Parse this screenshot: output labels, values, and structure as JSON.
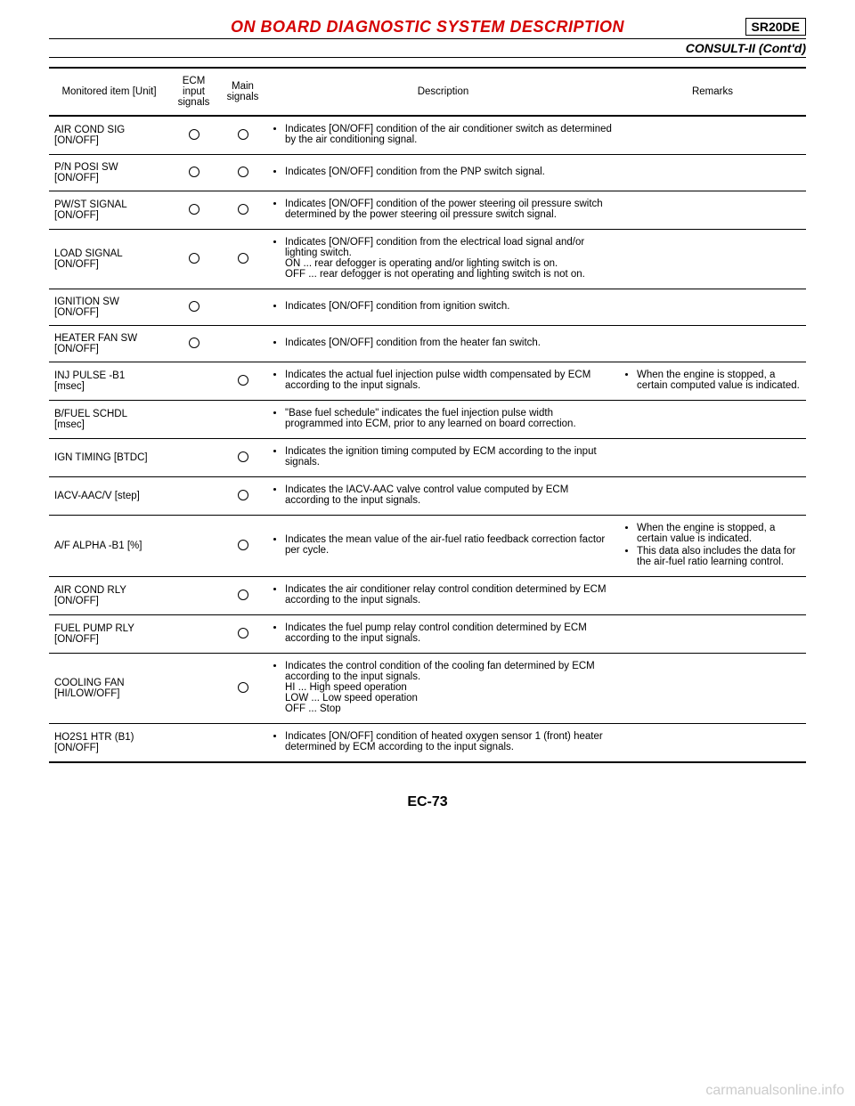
{
  "header": {
    "section_title": "ON BOARD DIAGNOSTIC SYSTEM DESCRIPTION",
    "doc_code": "SR20DE",
    "subheader": "CONSULT-II (Cont'd)",
    "title_color": "#d40000"
  },
  "table": {
    "columns": {
      "item": "Monitored item [Unit]",
      "ecm": "ECM input signals",
      "main": "Main signals",
      "desc": "Description",
      "rem": "Remarks"
    },
    "rows": [
      {
        "item": "AIR COND SIG\n[ON/OFF]",
        "ecm": true,
        "main": true,
        "desc": [
          "Indicates [ON/OFF] condition of the air conditioner switch as determined by the air conditioning signal."
        ],
        "rem": []
      },
      {
        "item": "P/N POSI SW\n[ON/OFF]",
        "ecm": true,
        "main": true,
        "desc": [
          "Indicates [ON/OFF] condition from the PNP switch signal."
        ],
        "rem": []
      },
      {
        "item": "PW/ST SIGNAL\n[ON/OFF]",
        "ecm": true,
        "main": true,
        "desc": [
          "Indicates [ON/OFF] condition of the power steering oil pressure switch determined by the power steering oil pressure switch signal."
        ],
        "rem": []
      },
      {
        "item": "LOAD SIGNAL\n[ON/OFF]",
        "ecm": true,
        "main": true,
        "desc": [
          "Indicates [ON/OFF] condition from the electrical load signal and/or lighting switch.\nON ... rear defogger is operating and/or lighting switch is on.\nOFF ... rear defogger is not operating and lighting switch is not on."
        ],
        "rem": []
      },
      {
        "item": "IGNITION SW\n[ON/OFF]",
        "ecm": true,
        "main": false,
        "desc": [
          "Indicates [ON/OFF] condition from ignition switch."
        ],
        "rem": []
      },
      {
        "item": "HEATER FAN SW\n[ON/OFF]",
        "ecm": true,
        "main": false,
        "desc": [
          "Indicates [ON/OFF] condition from the heater fan switch."
        ],
        "rem": []
      },
      {
        "item": "INJ PULSE -B1\n[msec]",
        "ecm": false,
        "main": true,
        "desc": [
          "Indicates the actual fuel injection pulse width compensated by ECM according to the input signals."
        ],
        "rem": [
          "When the engine is stopped, a certain computed value is indicated."
        ]
      },
      {
        "item": "B/FUEL SCHDL\n[msec]",
        "ecm": false,
        "main": false,
        "desc": [
          "\"Base fuel schedule\" indicates the fuel injection pulse width programmed into ECM, prior to any learned on board correction."
        ],
        "rem": []
      },
      {
        "item": "IGN TIMING [BTDC]",
        "ecm": false,
        "main": true,
        "desc": [
          "Indicates the ignition timing computed by ECM according to the input signals."
        ],
        "rem": []
      },
      {
        "item": "IACV-AAC/V [step]",
        "ecm": false,
        "main": true,
        "desc": [
          "Indicates the IACV-AAC valve control value computed by ECM according to the input signals."
        ],
        "rem": []
      },
      {
        "item": "A/F ALPHA -B1 [%]",
        "ecm": false,
        "main": true,
        "desc": [
          "Indicates the mean value of the air-fuel ratio feedback correction factor per cycle."
        ],
        "rem": [
          "When the engine is stopped, a certain value is indicated.",
          "This data also includes the data for the air-fuel ratio learning control."
        ]
      },
      {
        "item": "AIR COND RLY\n[ON/OFF]",
        "ecm": false,
        "main": true,
        "desc": [
          "Indicates the air conditioner relay control condition determined by ECM according to the input signals."
        ],
        "rem": []
      },
      {
        "item": "FUEL PUMP RLY\n[ON/OFF]",
        "ecm": false,
        "main": true,
        "desc": [
          "Indicates the fuel pump relay control condition determined by ECM according to the input signals."
        ],
        "rem": []
      },
      {
        "item": "COOLING FAN\n[HI/LOW/OFF]",
        "ecm": false,
        "main": true,
        "desc": [
          "Indicates the control condition of the cooling fan determined by ECM according to the input signals.\nHI ... High speed operation\nLOW ... Low speed operation\nOFF ... Stop"
        ],
        "rem": []
      },
      {
        "item": "HO2S1 HTR (B1)\n[ON/OFF]",
        "ecm": false,
        "main": false,
        "desc": [
          "Indicates [ON/OFF] condition of heated oxygen sensor 1 (front) heater determined by ECM according to the input signals."
        ],
        "rem": []
      }
    ]
  },
  "footer": {
    "page_num": "EC-73",
    "watermark": "carmanualsonline.info"
  }
}
